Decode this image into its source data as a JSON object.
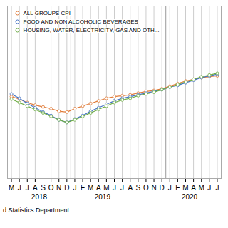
{
  "chart_data": {
    "type": "line",
    "categories": [
      "M",
      "J",
      "J",
      "A",
      "S",
      "O",
      "N",
      "D",
      "J",
      "F",
      "M",
      "A",
      "M",
      "J",
      "J",
      "A",
      "S",
      "O",
      "N",
      "D",
      "J",
      "F",
      "M",
      "A",
      "M",
      "J",
      "J"
    ],
    "series": [
      {
        "name": "ALL GROUPS CPI",
        "color": "#e07b39",
        "values": [
          104.5,
          104.2,
          103.8,
          103.5,
          103.3,
          103.1,
          102.8,
          102.7,
          103.1,
          103.4,
          103.7,
          104.0,
          104.3,
          104.5,
          104.6,
          104.7,
          104.9,
          105.1,
          105.2,
          105.4,
          105.7,
          106.0,
          106.3,
          106.5,
          106.7,
          106.8,
          106.9
        ]
      },
      {
        "name": "FOOD AND NON ALCOHOLIC BEVERAGES",
        "color": "#4472c4",
        "values": [
          104.8,
          104.3,
          103.7,
          103.2,
          102.7,
          102.3,
          101.8,
          101.5,
          101.9,
          102.3,
          102.8,
          103.2,
          103.6,
          104.0,
          104.3,
          104.5,
          104.7,
          104.9,
          105.1,
          105.3,
          105.6,
          105.8,
          106.1,
          106.4,
          106.7,
          106.9,
          107.1
        ]
      },
      {
        "name": "HOUSING, WATER, ELECTRICITY, GAS AND OTH...",
        "color": "#70ad47",
        "values": [
          104.2,
          103.8,
          103.4,
          103.0,
          102.6,
          102.2,
          101.8,
          101.5,
          101.8,
          102.2,
          102.6,
          103.0,
          103.4,
          103.8,
          104.1,
          104.3,
          104.6,
          104.8,
          105.0,
          105.3,
          105.6,
          105.9,
          106.2,
          106.5,
          106.8,
          107.0,
          107.2
        ]
      }
    ],
    "marker": "circle",
    "ylim": [
      95,
      115
    ],
    "grid": true,
    "legend": "upper left",
    "tick_labels": "x",
    "annotations": [
      {
        "text": "2018",
        "x": 3.5
      },
      {
        "text": "2019",
        "x": 11.5
      },
      {
        "text": "2020",
        "x": 22.5
      }
    ],
    "separators": [
      7.5,
      19.5
    ],
    "caption": "d Statistics Department"
  }
}
